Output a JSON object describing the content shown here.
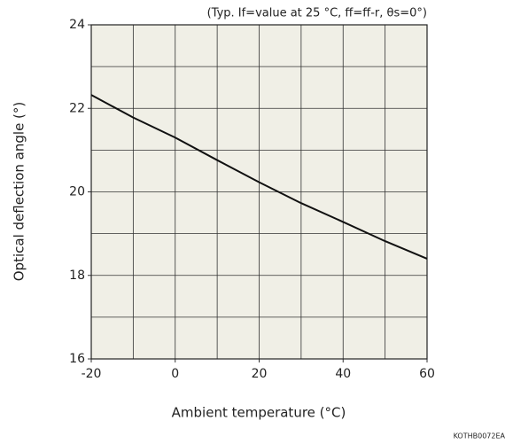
{
  "chart_data": {
    "type": "line",
    "annotation": "(Typ. If=value at 25 °C, ff=ff-r, θs=0°)",
    "x_label": "Ambient temperature (°C)",
    "y_label": "Optical deflection angle (°)",
    "code": "KOTHB0072EA",
    "x": [
      -20,
      -10,
      0,
      10,
      20,
      30,
      40,
      50,
      60
    ],
    "series": [
      {
        "color": "#111111",
        "values": [
          22.32,
          21.78,
          21.3,
          20.76,
          20.23,
          19.73,
          19.28,
          18.82,
          18.4
        ]
      }
    ],
    "xlim": [
      -20,
      60
    ],
    "xticks": [
      -20,
      0,
      20,
      40,
      60
    ],
    "ylim": [
      16,
      24
    ],
    "yticks": [
      16,
      18,
      20,
      22,
      24
    ],
    "xgrid": [
      -20,
      -10,
      0,
      10,
      20,
      30,
      40,
      50,
      60
    ],
    "ygrid": [
      16,
      17,
      18,
      19,
      20,
      21,
      22,
      23,
      24
    ],
    "plot_background": "#f0efe6"
  }
}
